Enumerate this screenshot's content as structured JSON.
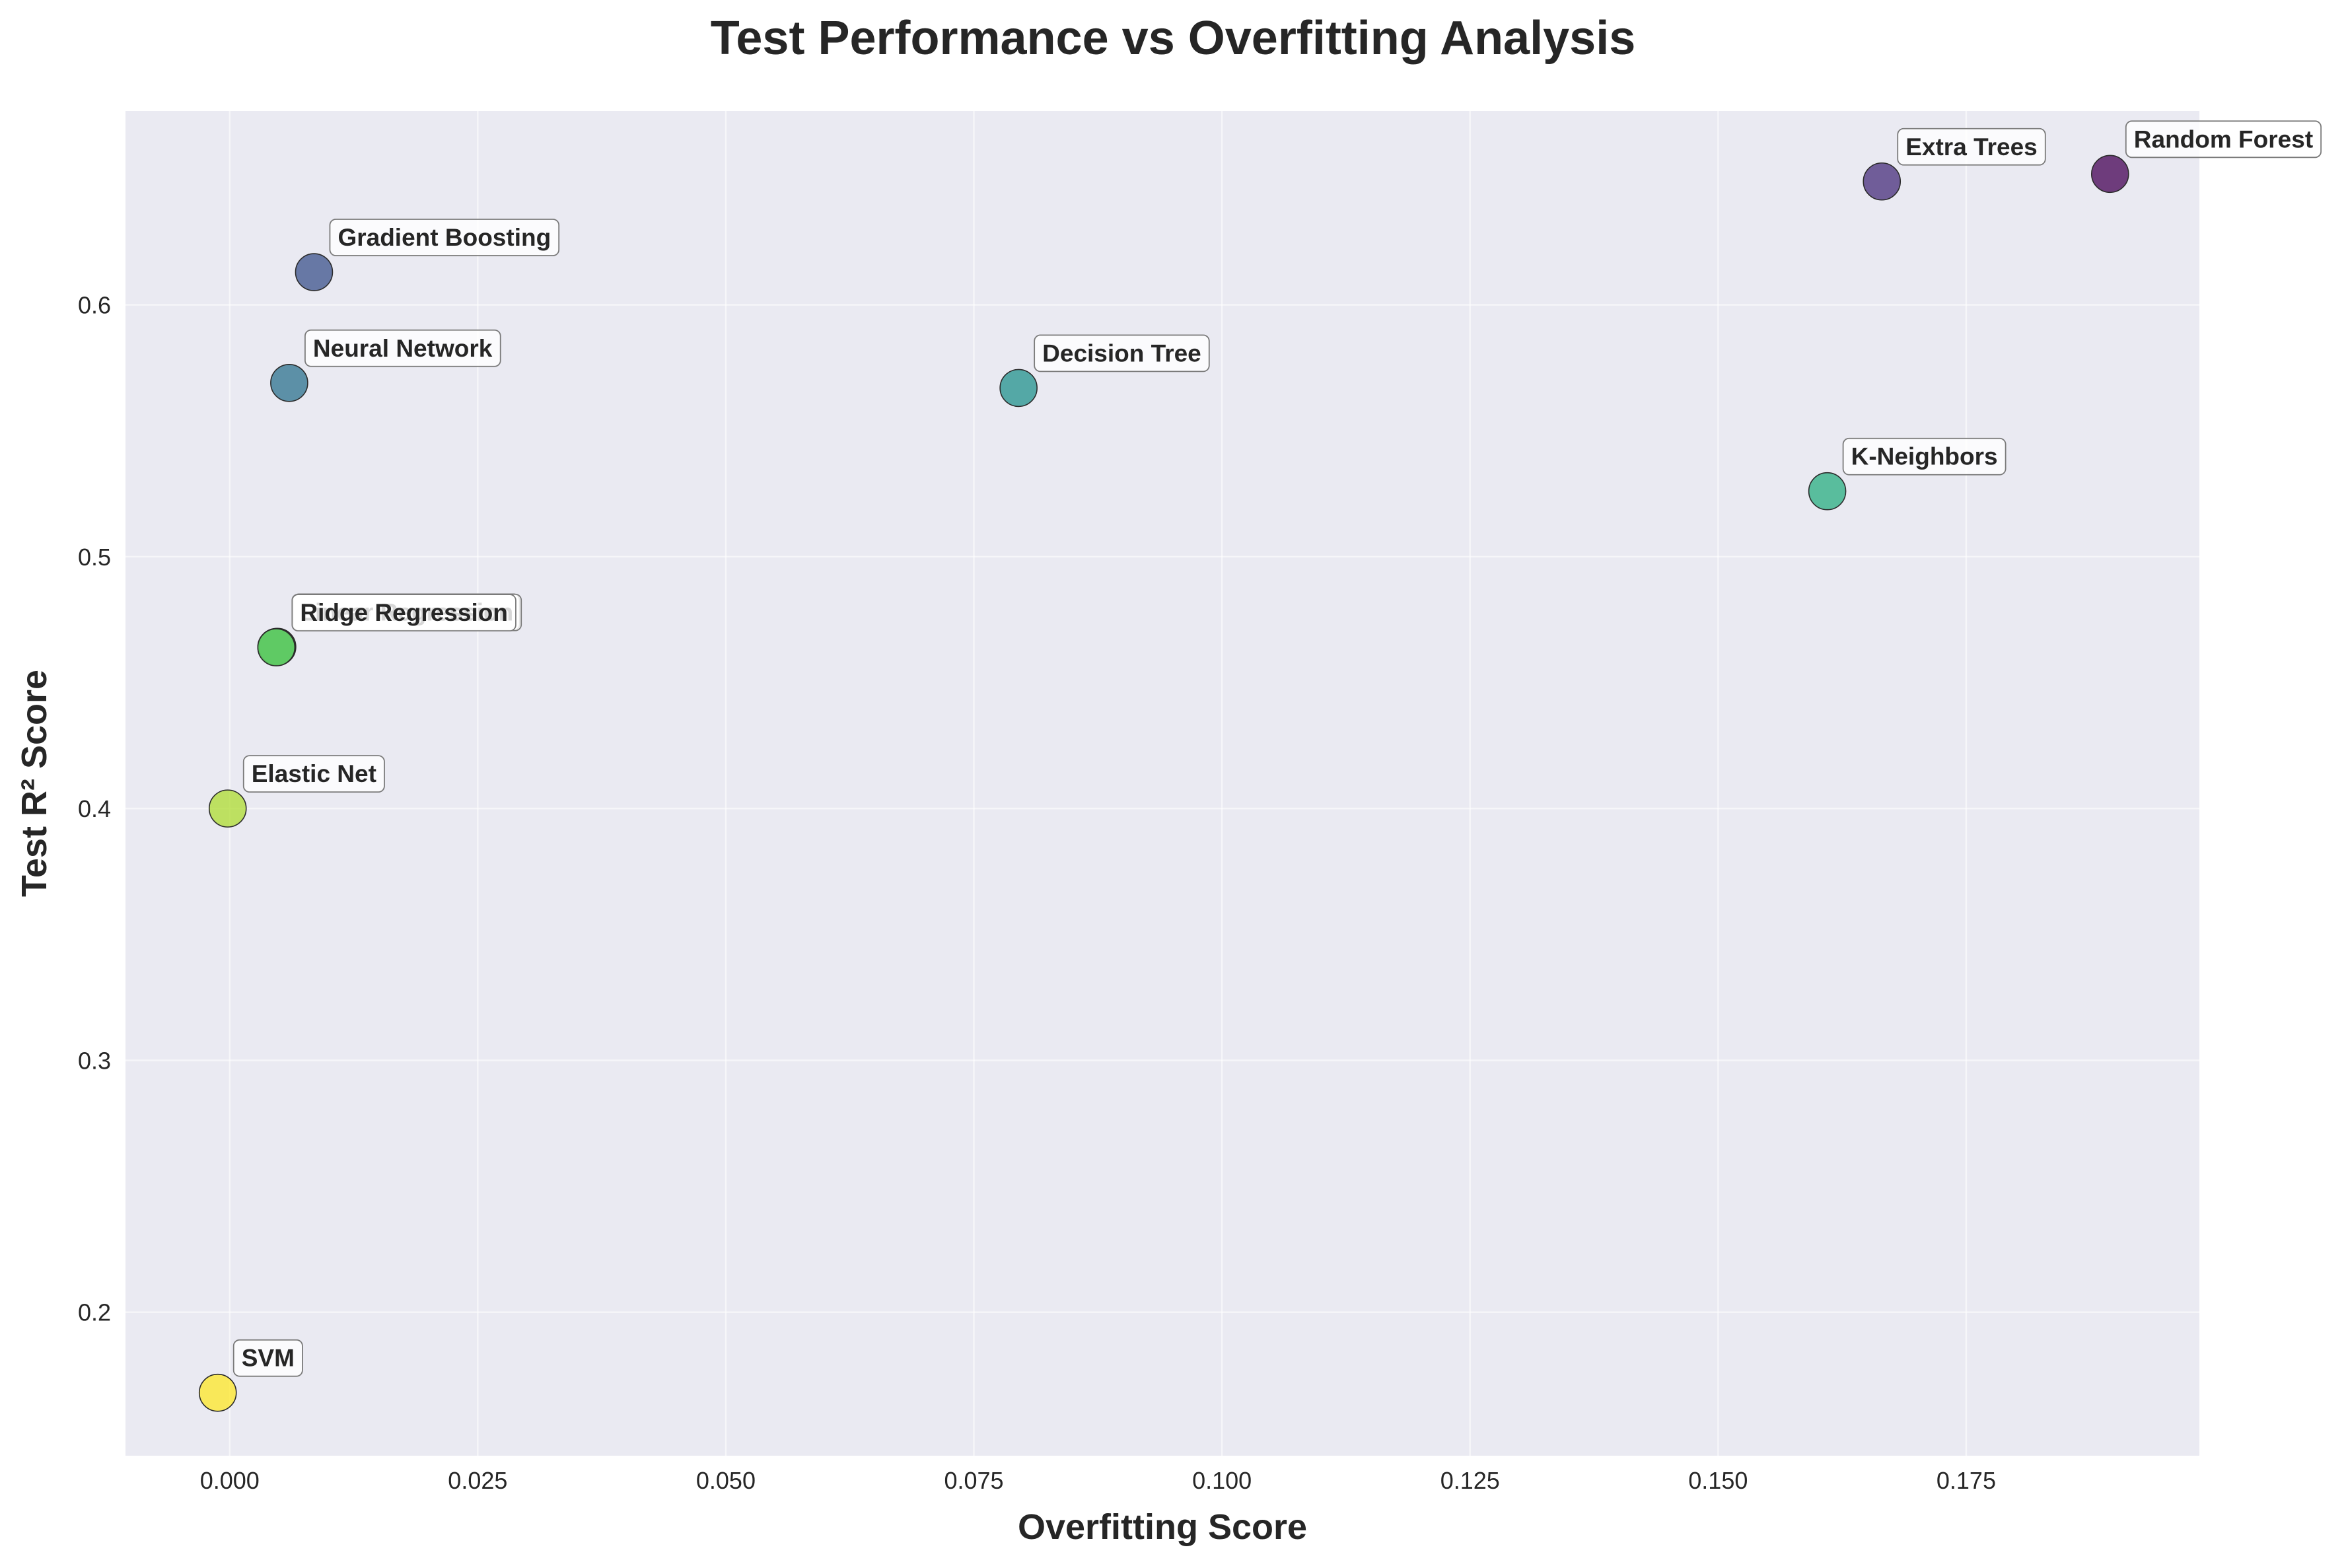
{
  "chart_data": {
    "type": "scatter",
    "title": "Test Performance vs Overfitting Analysis",
    "xlabel": "Overfitting Score",
    "ylabel": "Test R² Score",
    "xlim": [
      -0.0105,
      0.1985
    ],
    "ylim": [
      0.143,
      0.677
    ],
    "x_ticks": [
      0.0,
      0.025,
      0.05,
      0.075,
      0.1,
      0.125,
      0.15,
      0.175
    ],
    "x_tick_labels": [
      "0.000",
      "0.025",
      "0.050",
      "0.075",
      "0.100",
      "0.125",
      "0.150",
      "0.175"
    ],
    "y_ticks": [
      0.2,
      0.3,
      0.4,
      0.5,
      0.6
    ],
    "y_tick_labels": [
      "0.2",
      "0.3",
      "0.4",
      "0.5",
      "0.6"
    ],
    "grid": true,
    "colormap": "viridis",
    "plot_background": "#eaeaf2",
    "points": [
      {
        "label": "Random Forest",
        "x": 0.1895,
        "y": 0.652,
        "color": "#440154"
      },
      {
        "label": "Extra Trees",
        "x": 0.1665,
        "y": 0.649,
        "color": "#472d7b"
      },
      {
        "label": "Gradient Boosting",
        "x": 0.0085,
        "y": 0.613,
        "color": "#3b528b"
      },
      {
        "label": "Neural Network",
        "x": 0.006,
        "y": 0.569,
        "color": "#2c728e"
      },
      {
        "label": "Decision Tree",
        "x": 0.0795,
        "y": 0.567,
        "color": "#21918c"
      },
      {
        "label": "K-Neighbors",
        "x": 0.161,
        "y": 0.526,
        "color": "#28ae80"
      },
      {
        "label": "Lasso Regression",
        "x": 0.0048,
        "y": 0.4642,
        "color": "#5ec962"
      },
      {
        "label": "Linear Regression",
        "x": 0.0047,
        "y": 0.4641,
        "color": "#5ec962"
      },
      {
        "label": "Ridge Regression",
        "x": 0.0047,
        "y": 0.464,
        "color": "#5ec962"
      },
      {
        "label": "Elastic Net",
        "x": -0.0002,
        "y": 0.4,
        "color": "#addc30"
      },
      {
        "label": "SVM",
        "x": -0.0012,
        "y": 0.168,
        "color": "#fde725"
      }
    ]
  }
}
